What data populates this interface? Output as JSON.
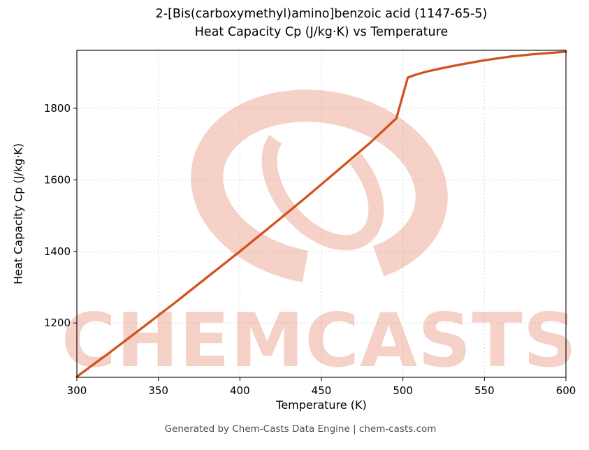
{
  "watermark": {
    "text": "CHEMCASTS",
    "color": "#e06a4a"
  },
  "footer": {
    "text": "Generated by Chem-Casts Data Engine | chem-casts.com"
  },
  "chart_data": {
    "type": "line",
    "title": [
      "2-[Bis(carboxymethyl)amino]benzoic acid (1147-65-5)",
      "Heat Capacity Cp (J/kg·K) vs Temperature"
    ],
    "xlabel": "Temperature (K)",
    "ylabel": "Heat Capacity Cp (J/kg·K)",
    "xlim": [
      300,
      600
    ],
    "ylim": [
      1048,
      1962
    ],
    "xticks": [
      300,
      350,
      400,
      450,
      500,
      550,
      600
    ],
    "yticks": [
      1200,
      1400,
      1600,
      1800
    ],
    "grid": true,
    "legend": "none",
    "line_color": "#d2521e",
    "series": [
      {
        "name": "Heat Capacity Cp",
        "x": [
          300,
          320,
          340,
          360,
          380,
          400,
          420,
          440,
          460,
          480,
          496,
          503,
          508,
          515,
          525,
          535,
          550,
          565,
          580,
          600
        ],
        "y": [
          1050,
          1117,
          1186,
          1256,
          1328,
          1400,
          1474,
          1549,
          1626,
          1704,
          1772,
          1886,
          1894,
          1903,
          1913,
          1922,
          1934,
          1944,
          1951,
          1958
        ]
      }
    ]
  }
}
